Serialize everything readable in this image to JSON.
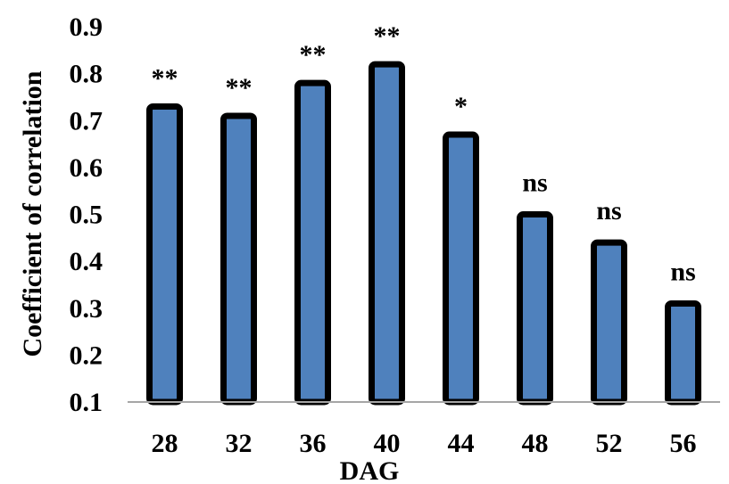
{
  "chart_data": {
    "type": "bar",
    "xlabel": "DAG",
    "ylabel": "Coefficient of correlation",
    "categories": [
      "28",
      "32",
      "36",
      "40",
      "44",
      "48",
      "52",
      "56"
    ],
    "values": [
      0.73,
      0.71,
      0.78,
      0.82,
      0.67,
      0.5,
      0.44,
      0.31
    ],
    "significance": [
      "**",
      "**",
      "**",
      "**",
      "*",
      "ns",
      "ns",
      "ns"
    ],
    "ylim": [
      0.1,
      0.9
    ],
    "yticks": [
      "0.1",
      "0.2",
      "0.3",
      "0.4",
      "0.5",
      "0.6",
      "0.7",
      "0.8",
      "0.9"
    ],
    "grid": false,
    "bar_color": "#4F81BD",
    "bar_border_color": "#000000"
  }
}
